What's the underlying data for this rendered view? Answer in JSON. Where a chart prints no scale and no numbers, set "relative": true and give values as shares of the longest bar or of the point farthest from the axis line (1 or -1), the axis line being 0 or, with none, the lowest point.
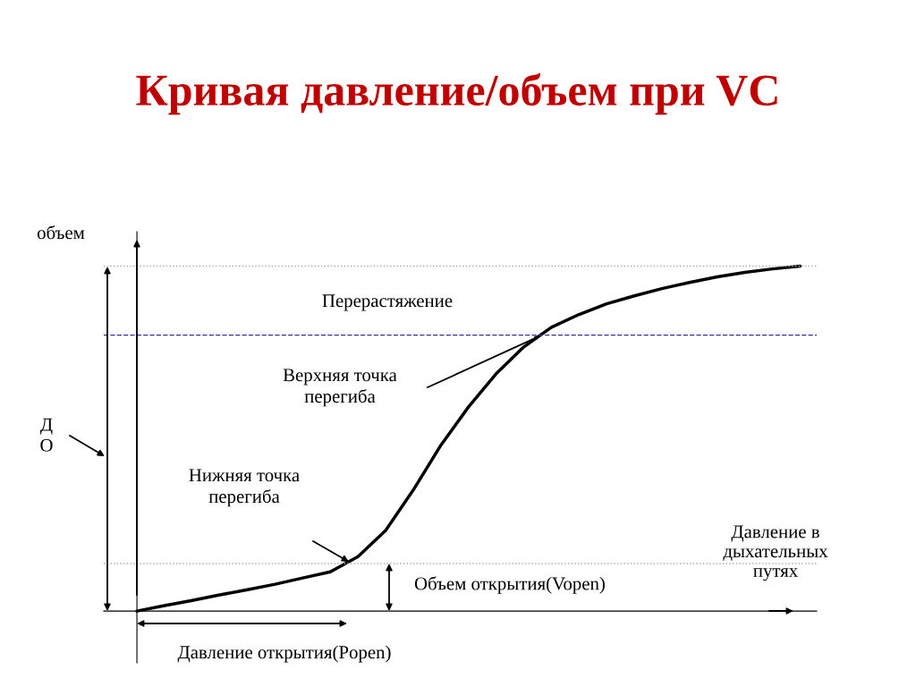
{
  "chart_data": {
    "type": "line",
    "title": "Кривая давление/объем при VC",
    "ylabel": "объем",
    "xlabel": "Давление в\nдыхательных\nпутях",
    "relative": true,
    "color": "#000000",
    "categories": [
      null,
      null,
      null,
      null,
      null,
      null,
      null,
      null,
      null,
      null,
      null,
      null,
      null,
      null,
      null,
      null,
      null,
      null,
      null,
      null,
      null,
      null,
      null,
      null,
      null
    ],
    "values": [
      0,
      0.016,
      0.031,
      0.047,
      0.062,
      0.078,
      0.096,
      0.114,
      0.158,
      0.234,
      0.351,
      0.481,
      0.592,
      0.688,
      0.766,
      0.823,
      0.86,
      0.891,
      0.914,
      0.935,
      0.953,
      0.969,
      0.982,
      0.992,
      1.0
    ],
    "ref_lines": [
      {
        "axis": "y",
        "value": 1.0,
        "color": "#aaaaaa",
        "line_style": "dotted"
      },
      {
        "axis": "y",
        "value": 0.8,
        "color": "#333399",
        "line_style": "dashed"
      },
      {
        "axis": "y",
        "value": 0.138,
        "color": "#aaaaaa",
        "line_style": "dotted"
      }
    ],
    "annotations": [
      "Перерастяжение",
      "Верхняя точка\nперегиба",
      "Нижняя точка\nперегиба",
      "Д\nО",
      "Объем открытия(Vopen)",
      "Давление открытия(Popen)"
    ]
  }
}
